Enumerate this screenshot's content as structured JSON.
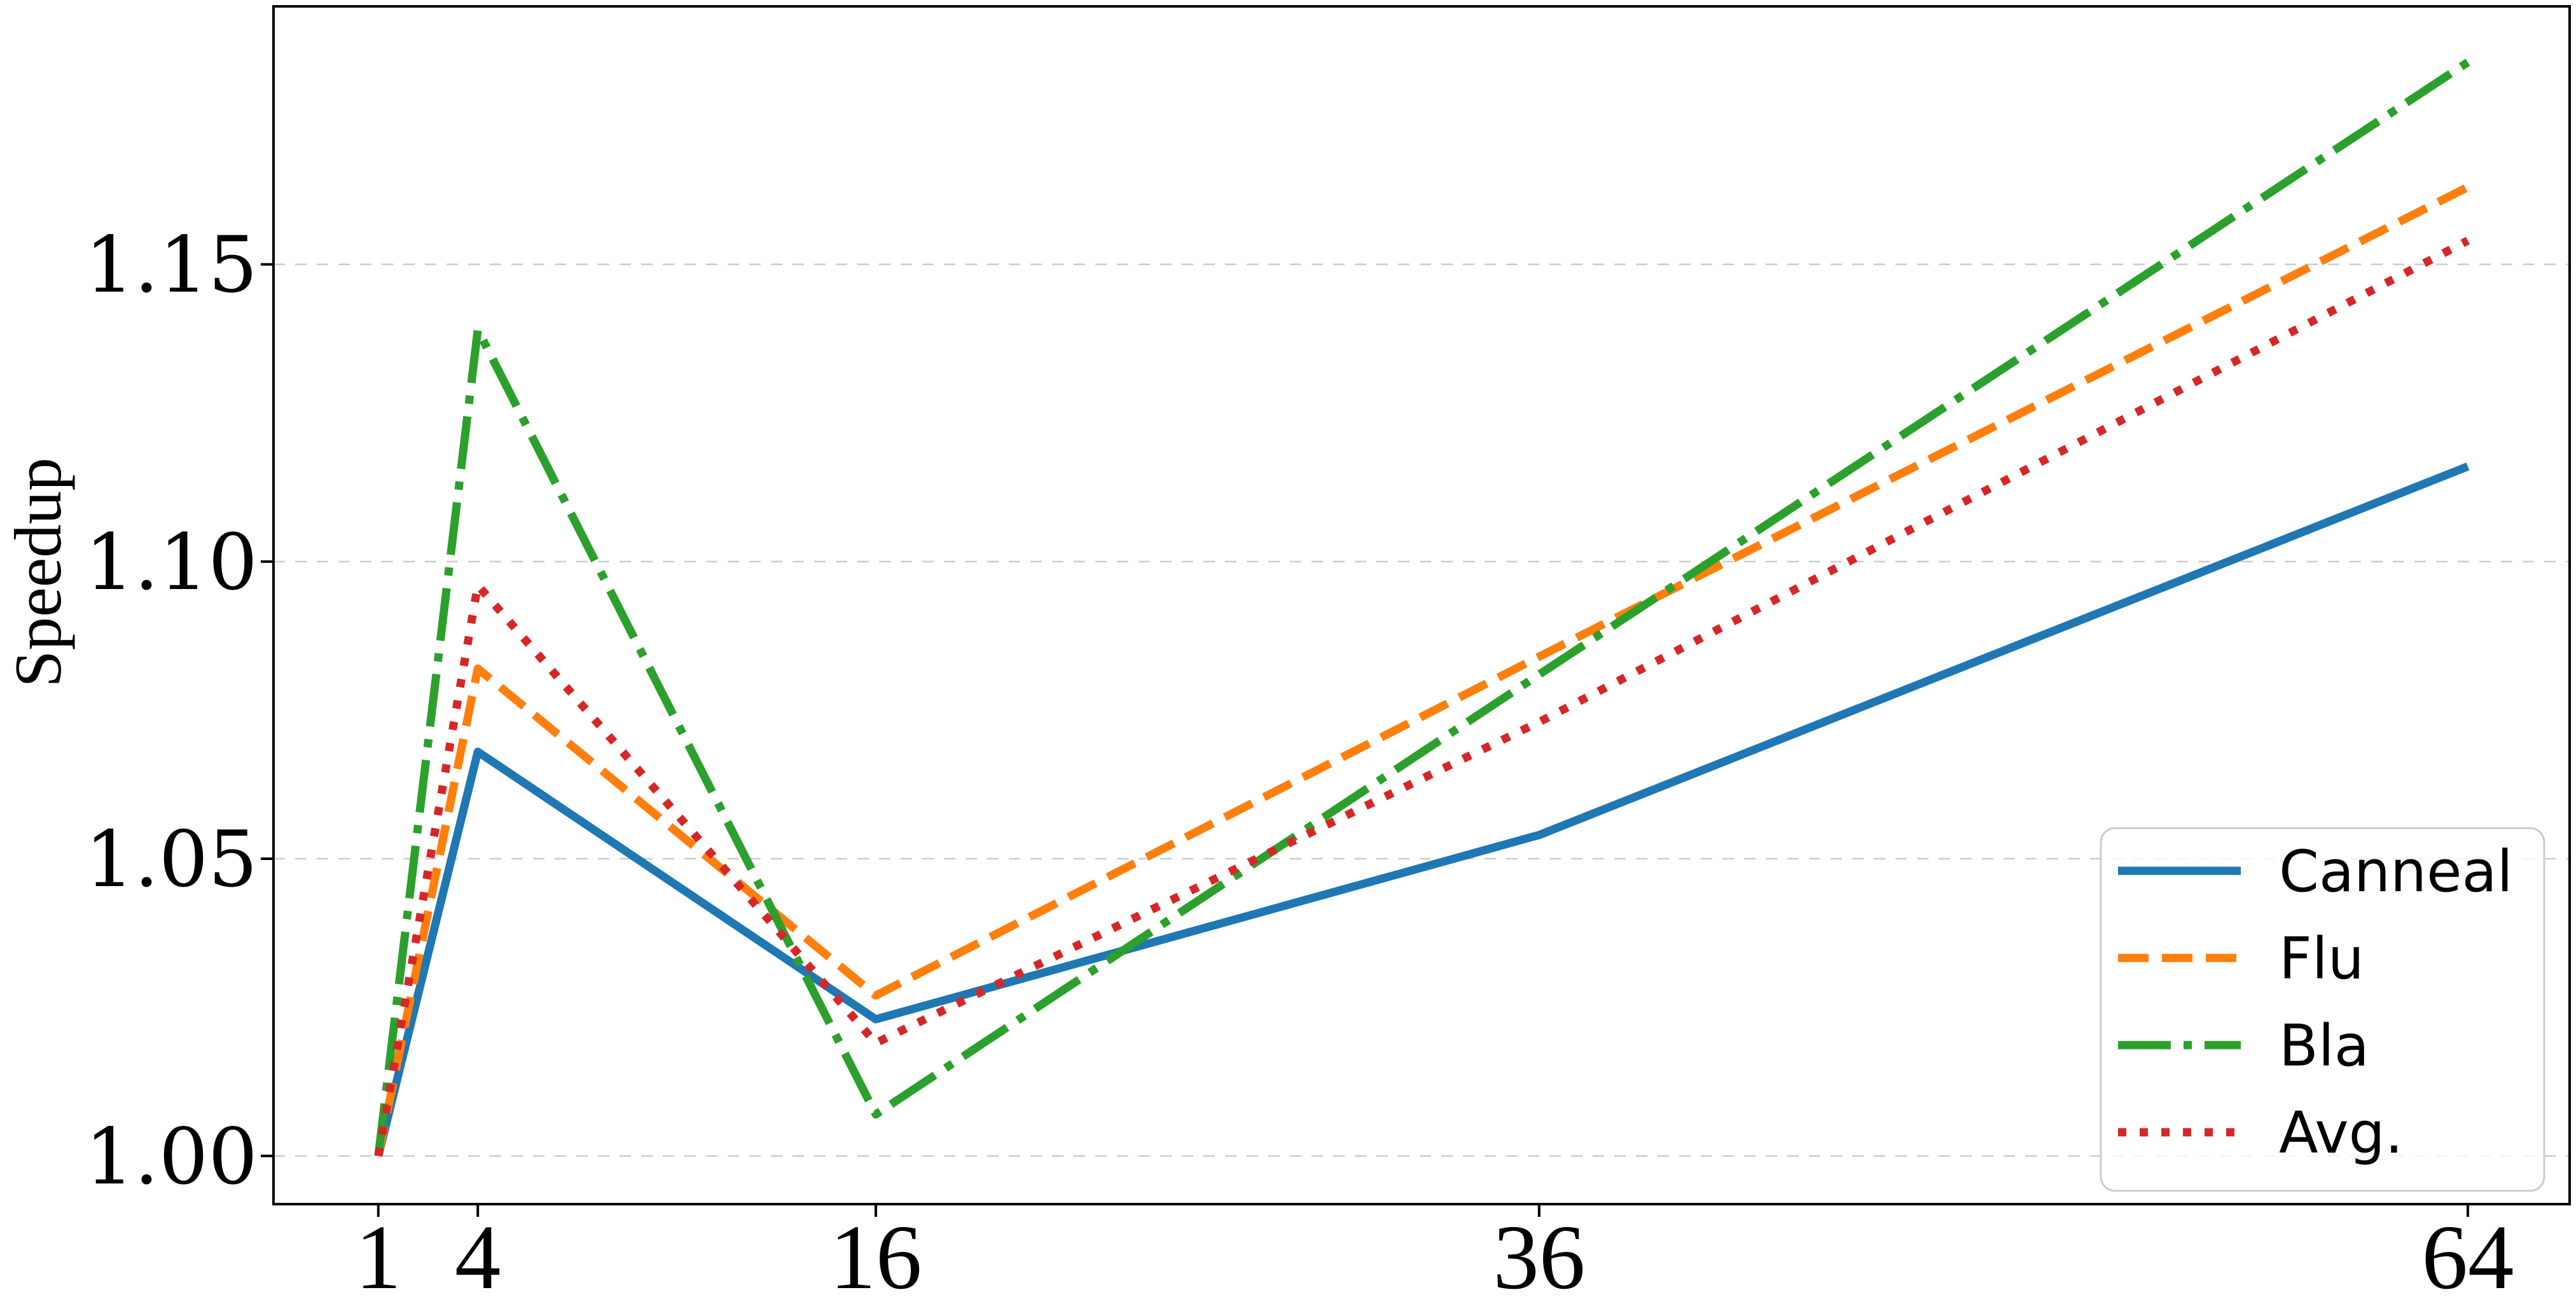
{
  "chart_data": {
    "type": "line",
    "title": "",
    "xlabel": "",
    "ylabel": "Speedup",
    "x": [
      1,
      4,
      16,
      36,
      64
    ],
    "xtick_labels": [
      "1",
      "4",
      "16",
      "36",
      "64"
    ],
    "ytick_values": [
      1.0,
      1.05,
      1.1,
      1.15
    ],
    "ytick_labels": [
      "1.00",
      "1.05",
      "1.10",
      "1.15"
    ],
    "axes": {
      "xlim": [
        -2.16,
        67.07
      ],
      "ylim": [
        0.9919,
        1.1934
      ],
      "grid": "horizontal-dashed",
      "legend_position": "lower-right"
    },
    "series": [
      {
        "name": "Canneal",
        "color": "#1f77b4",
        "linestyle": "solid",
        "values": [
          1.0,
          1.068,
          1.023,
          1.054,
          1.116
        ]
      },
      {
        "name": "Flu",
        "color": "#ff7f0e",
        "linestyle": "dashed",
        "values": [
          1.0,
          1.082,
          1.027,
          1.084,
          1.163
        ]
      },
      {
        "name": "Bla",
        "color": "#2ca02c",
        "linestyle": "dashdot",
        "values": [
          1.0,
          1.139,
          1.007,
          1.081,
          1.184
        ]
      },
      {
        "name": "Avg.",
        "color": "#d62728",
        "linestyle": "dotted",
        "values": [
          1.0,
          1.096,
          1.019,
          1.073,
          1.154
        ]
      }
    ],
    "colors": {
      "grid": "#cccccc",
      "axis": "#000000",
      "tick_label": "#000000",
      "legend_border": "#cccccc",
      "legend_background": "rgba(255,255,255,0.8)"
    }
  }
}
